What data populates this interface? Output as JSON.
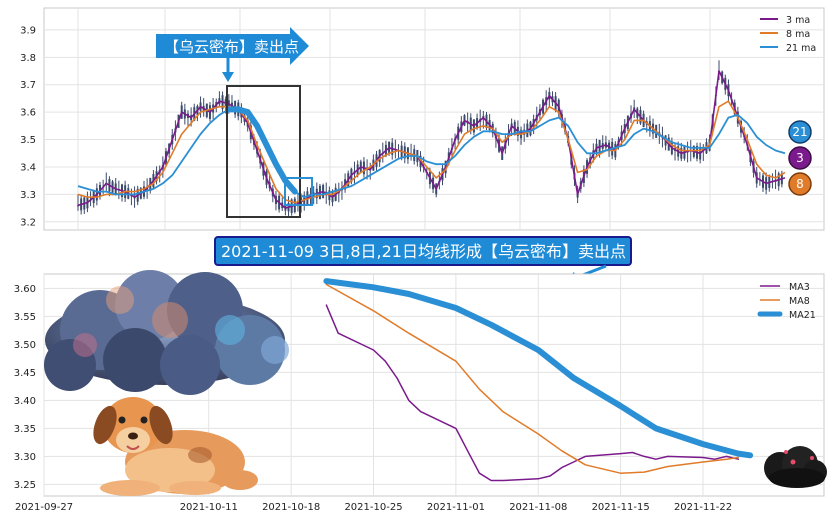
{
  "colors": {
    "ma3": "#7b1a8c",
    "ma8": "#e07b2a",
    "ma21": "#2a8fd4",
    "candle": "#3b4a6b",
    "callout_bg": "#1f8bd6",
    "banner_bg": "#1f8bd6",
    "banner_border": "#1a1a8f",
    "box": "#333333",
    "grid": "#e3e3e3",
    "frame": "#c9c9c9"
  },
  "top_callout": "【乌云密布】卖出点",
  "banner": "2021-11-09 3日,8日,21日均线形成【乌云密布】卖出点",
  "badges": [
    "21",
    "3",
    "8"
  ],
  "icons": [
    "storm-cloud-icon",
    "dog-icon",
    "small-dark-cloud-icon"
  ],
  "chart_data": [
    {
      "type": "line",
      "legend": [
        "3 ma",
        "8 ma",
        "21 ma"
      ],
      "legend_position": "top-right",
      "yticks": [
        "3.2",
        "3.3",
        "3.4",
        "3.5",
        "3.6",
        "3.7",
        "3.8",
        "3.9"
      ],
      "ylim": [
        3.17,
        3.98
      ],
      "grid": true,
      "series": [
        {
          "name": "3 ma",
          "values": [
            3.26,
            3.27,
            3.3,
            3.34,
            3.32,
            3.31,
            3.29,
            3.31,
            3.35,
            3.4,
            3.5,
            3.6,
            3.58,
            3.62,
            3.6,
            3.64,
            3.63,
            3.61,
            3.56,
            3.46,
            3.36,
            3.28,
            3.25,
            3.26,
            3.28,
            3.3,
            3.31,
            3.29,
            3.32,
            3.37,
            3.4,
            3.39,
            3.44,
            3.47,
            3.46,
            3.45,
            3.44,
            3.38,
            3.32,
            3.4,
            3.5,
            3.57,
            3.55,
            3.58,
            3.54,
            3.45,
            3.55,
            3.52,
            3.54,
            3.6,
            3.66,
            3.62,
            3.5,
            3.3,
            3.4,
            3.47,
            3.48,
            3.46,
            3.54,
            3.61,
            3.57,
            3.54,
            3.51,
            3.47,
            3.45,
            3.46,
            3.45,
            3.48,
            3.75,
            3.68,
            3.58,
            3.48,
            3.36,
            3.34,
            3.35,
            3.36
          ]
        },
        {
          "name": "8 ma",
          "values": [
            3.3,
            3.29,
            3.29,
            3.3,
            3.3,
            3.31,
            3.31,
            3.32,
            3.34,
            3.38,
            3.45,
            3.52,
            3.56,
            3.6,
            3.61,
            3.62,
            3.62,
            3.61,
            3.57,
            3.48,
            3.4,
            3.32,
            3.28,
            3.27,
            3.28,
            3.29,
            3.3,
            3.3,
            3.32,
            3.35,
            3.38,
            3.4,
            3.43,
            3.45,
            3.46,
            3.45,
            3.44,
            3.4,
            3.36,
            3.39,
            3.46,
            3.52,
            3.54,
            3.55,
            3.54,
            3.49,
            3.52,
            3.52,
            3.53,
            3.57,
            3.62,
            3.6,
            3.5,
            3.38,
            3.39,
            3.44,
            3.46,
            3.46,
            3.5,
            3.57,
            3.57,
            3.54,
            3.51,
            3.48,
            3.46,
            3.46,
            3.46,
            3.48,
            3.62,
            3.64,
            3.58,
            3.5,
            3.41,
            3.37,
            3.36,
            3.38
          ]
        },
        {
          "name": "21 ma",
          "values": [
            3.33,
            3.32,
            3.31,
            3.31,
            3.3,
            3.3,
            3.3,
            3.31,
            3.32,
            3.34,
            3.37,
            3.42,
            3.47,
            3.52,
            3.56,
            3.59,
            3.61,
            3.61,
            3.6,
            3.55,
            3.48,
            3.41,
            3.35,
            3.31,
            3.29,
            3.3,
            3.3,
            3.31,
            3.32,
            3.33,
            3.35,
            3.37,
            3.39,
            3.41,
            3.43,
            3.44,
            3.44,
            3.42,
            3.41,
            3.41,
            3.44,
            3.48,
            3.51,
            3.53,
            3.53,
            3.52,
            3.52,
            3.53,
            3.53,
            3.55,
            3.57,
            3.58,
            3.55,
            3.49,
            3.45,
            3.45,
            3.46,
            3.47,
            3.48,
            3.52,
            3.54,
            3.53,
            3.51,
            3.49,
            3.48,
            3.47,
            3.47,
            3.47,
            3.52,
            3.58,
            3.59,
            3.56,
            3.51,
            3.48,
            3.46,
            3.45
          ]
        }
      ]
    },
    {
      "type": "line",
      "legend": [
        "MA3",
        "MA8",
        "MA21"
      ],
      "legend_position": "top-right",
      "x_tick_labels": [
        "2021-09-27",
        "2021-10-11",
        "2021-10-18",
        "2021-10-25",
        "2021-11-01",
        "2021-11-08",
        "2021-11-15",
        "2021-11-22"
      ],
      "yticks": [
        "3.25",
        "3.30",
        "3.35",
        "3.40",
        "3.45",
        "3.50",
        "3.55",
        "3.60"
      ],
      "ylim": [
        3.24,
        3.615
      ],
      "grid": true,
      "series": [
        {
          "name": "MA3",
          "x": [
            "2021-10-21",
            "2021-10-22",
            "2021-10-25",
            "2021-10-26",
            "2021-10-27",
            "2021-10-28",
            "2021-10-29",
            "2021-11-01",
            "2021-11-02",
            "2021-11-03",
            "2021-11-04",
            "2021-11-05",
            "2021-11-08",
            "2021-11-09",
            "2021-11-10",
            "2021-11-11",
            "2021-11-12",
            "2021-11-15",
            "2021-11-16",
            "2021-11-17",
            "2021-11-18",
            "2021-11-19",
            "2021-11-22",
            "2021-11-23",
            "2021-11-24",
            "2021-11-25"
          ],
          "values": [
            3.57,
            3.52,
            3.49,
            3.47,
            3.44,
            3.4,
            3.38,
            3.35,
            3.31,
            3.27,
            3.257,
            3.257,
            3.26,
            3.265,
            3.28,
            3.29,
            3.3,
            3.305,
            3.307,
            3.3,
            3.295,
            3.3,
            3.298,
            3.295,
            3.3,
            3.295
          ]
        },
        {
          "name": "MA8",
          "x": [
            "2021-10-21",
            "2021-10-25",
            "2021-10-28",
            "2021-11-01",
            "2021-11-03",
            "2021-11-05",
            "2021-11-08",
            "2021-11-10",
            "2021-11-12",
            "2021-11-15",
            "2021-11-17",
            "2021-11-19",
            "2021-11-22",
            "2021-11-24",
            "2021-11-25"
          ],
          "values": [
            3.607,
            3.56,
            3.52,
            3.47,
            3.42,
            3.38,
            3.34,
            3.31,
            3.285,
            3.27,
            3.272,
            3.282,
            3.29,
            3.295,
            3.298
          ]
        },
        {
          "name": "MA21",
          "x": [
            "2021-10-21",
            "2021-10-25",
            "2021-10-28",
            "2021-11-01",
            "2021-11-04",
            "2021-11-08",
            "2021-11-11",
            "2021-11-15",
            "2021-11-18",
            "2021-11-22",
            "2021-11-25",
            "2021-11-26"
          ],
          "values": [
            3.613,
            3.602,
            3.59,
            3.565,
            3.535,
            3.49,
            3.44,
            3.39,
            3.35,
            3.322,
            3.305,
            3.302
          ]
        }
      ]
    }
  ]
}
